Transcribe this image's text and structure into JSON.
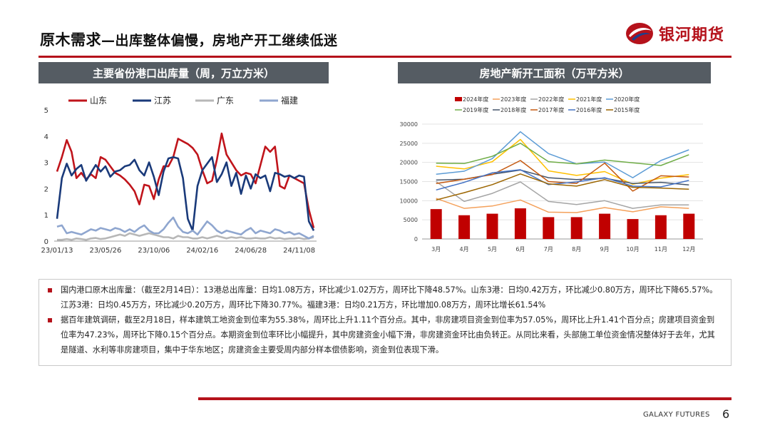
{
  "header": {
    "title_main": "原木需求",
    "title_sub": "—出库整体偏慢，房地产开工继续低迷",
    "logo_text": "银河期货",
    "colors": {
      "brand": "#b5121b",
      "panel": "#555c63"
    }
  },
  "left_panel": {
    "title": "主要省份港口出库量（周，万立方米）"
  },
  "right_panel": {
    "title": "房地产新开工面积（万平方米）"
  },
  "chart_data": [
    {
      "type": "line",
      "title": "主要省份港口出库量（周，万立方米）",
      "legend_position": "top",
      "ylim": [
        0,
        5
      ],
      "yticks": [
        "0",
        "1",
        "2",
        "3",
        "4",
        "5"
      ],
      "x_tick_labels": [
        "23/01/13",
        "23/05/26",
        "23/10/06",
        "24/02/16",
        "24/06/28",
        "24/11/08"
      ],
      "series": [
        {
          "name": "山东",
          "color": "#c0141b",
          "values": [
            2.65,
            3.2,
            3.85,
            3.4,
            2.4,
            2.6,
            2.35,
            2.55,
            2.4,
            3.2,
            3.1,
            2.85,
            2.6,
            2.5,
            2.35,
            2.15,
            1.9,
            1.4,
            2.15,
            2.1,
            1.6,
            2.35,
            2.85,
            2.85,
            3.2,
            3.9,
            3.8,
            3.7,
            3.55,
            3.3,
            2.7,
            2.2,
            2.3,
            3.1,
            4.1,
            3.3,
            3.0,
            2.7,
            2.5,
            2.6,
            2.55,
            2.2,
            2.9,
            3.6,
            3.4,
            3.6,
            2.1,
            2.0,
            2.5,
            2.4,
            2.3,
            2.2,
            1.2,
            0.5
          ]
        },
        {
          "name": "江苏",
          "color": "#1a3a7a",
          "values": [
            0.85,
            2.4,
            2.95,
            2.5,
            2.75,
            2.9,
            2.3,
            2.6,
            2.9,
            2.65,
            2.85,
            2.45,
            2.65,
            2.7,
            2.85,
            2.9,
            3.1,
            2.7,
            2.5,
            3.0,
            2.45,
            1.75,
            2.65,
            3.15,
            3.2,
            3.15,
            2.4,
            0.85,
            0.4,
            2.1,
            2.7,
            2.95,
            3.2,
            2.25,
            2.55,
            3.0,
            2.1,
            2.6,
            1.8,
            2.5,
            2.0,
            2.55,
            2.4,
            2.5,
            1.9,
            2.6,
            2.55,
            2.45,
            2.5,
            2.4,
            2.5,
            2.45,
            0.75,
            0.4
          ]
        },
        {
          "name": "广东",
          "color": "#b7b7b7",
          "values": [
            0.05,
            0.05,
            0.08,
            0.05,
            0.1,
            0.08,
            0.05,
            0.1,
            0.12,
            0.08,
            0.1,
            0.15,
            0.2,
            0.25,
            0.2,
            0.3,
            0.25,
            0.2,
            0.25,
            0.3,
            0.25,
            0.2,
            0.15,
            0.15,
            0.1,
            0.2,
            0.15,
            0.15,
            0.1,
            0.1,
            0.15,
            0.1,
            0.15,
            0.2,
            0.15,
            0.1,
            0.15,
            0.12,
            0.15,
            0.1,
            0.1,
            0.12,
            0.1,
            0.1,
            0.15,
            0.1,
            0.12,
            0.08,
            0.1,
            0.1,
            0.12,
            0.08,
            0.1,
            0.15
          ]
        },
        {
          "name": "福建",
          "color": "#8fa6cf",
          "values": [
            0.55,
            0.6,
            0.3,
            0.35,
            0.3,
            0.25,
            0.35,
            0.45,
            0.4,
            0.5,
            0.45,
            0.4,
            0.5,
            0.45,
            0.35,
            0.45,
            0.35,
            0.5,
            0.6,
            0.4,
            0.3,
            0.3,
            0.45,
            0.7,
            0.9,
            0.55,
            0.35,
            0.3,
            0.4,
            0.25,
            0.5,
            0.75,
            0.6,
            0.4,
            0.3,
            0.4,
            0.35,
            0.3,
            0.25,
            0.4,
            0.5,
            0.3,
            0.4,
            0.35,
            0.3,
            0.45,
            0.4,
            0.3,
            0.35,
            0.25,
            0.3,
            0.2,
            0.1,
            0.2
          ]
        }
      ]
    },
    {
      "type": "bar+line",
      "title": "房地产新开工面积（万平方米）",
      "legend_position": "top",
      "categories": [
        "3月",
        "4月",
        "5月",
        "6月",
        "7月",
        "8月",
        "9月",
        "10月",
        "11月",
        "12月"
      ],
      "ylim": [
        0,
        30000
      ],
      "yticks": [
        "0",
        "5000",
        "10000",
        "15000",
        "20000",
        "25000",
        "30000"
      ],
      "series": [
        {
          "name": "2024年度",
          "kind": "bar",
          "color": "#c00000",
          "values": [
            7800,
            6200,
            6600,
            8000,
            5700,
            5700,
            6600,
            5200,
            6200,
            6600
          ]
        },
        {
          "name": "2023年度",
          "kind": "line",
          "color": "#f4a15b",
          "values": [
            10600,
            8000,
            8600,
            10200,
            7000,
            6900,
            8200,
            7100,
            8400,
            8000
          ]
        },
        {
          "name": "2022年度",
          "kind": "line",
          "color": "#a5a5a5",
          "values": [
            15000,
            9800,
            11900,
            14900,
            9800,
            9000,
            10000,
            8000,
            8900,
            8900
          ]
        },
        {
          "name": "2021年度",
          "kind": "line",
          "color": "#ffc000",
          "values": [
            19000,
            18300,
            20200,
            26000,
            17800,
            16600,
            17600,
            14300,
            15900,
            16800
          ]
        },
        {
          "name": "2020年度",
          "kind": "line",
          "color": "#5b9bd5",
          "values": [
            16900,
            17700,
            21000,
            28000,
            22300,
            19600,
            20100,
            16000,
            20500,
            23300
          ]
        },
        {
          "name": "2019年度",
          "kind": "line",
          "color": "#70ad47",
          "values": [
            19800,
            19700,
            21600,
            25000,
            20200,
            19600,
            20600,
            19900,
            19200,
            22000
          ]
        },
        {
          "name": "2018年度",
          "kind": "line",
          "color": "#44546a",
          "values": [
            15400,
            15600,
            16900,
            18000,
            16000,
            15500,
            15900,
            14500,
            14800,
            14100
          ]
        },
        {
          "name": "2017年度",
          "kind": "line",
          "color": "#c55a11",
          "values": [
            14500,
            15600,
            16800,
            20500,
            15000,
            14500,
            19800,
            12500,
            16500,
            16200
          ]
        },
        {
          "name": "2016年度",
          "kind": "line",
          "color": "#4472c4",
          "values": [
            12800,
            14800,
            17300,
            18100,
            14200,
            14900,
            16000,
            13800,
            13600,
            15300
          ]
        },
        {
          "name": "2015年度",
          "kind": "line",
          "color": "#9c6500",
          "values": [
            10200,
            12100,
            14200,
            17000,
            14400,
            13800,
            15500,
            13500,
            13300,
            13000
          ]
        }
      ]
    }
  ],
  "notes": [
    "国内港口原木出库量：（截至2月14日）：13港总出库量：日均1.08万方，环比减少1.02万方，周环比下降48.57%。山东3港：日均0.42万方，环比减少0.80万方，周环比下降65.57%。江苏3港：日均0.45万方，环比减少0.20万方，周环比下降30.77%。福建3港：日均0.21万方，环比增加0.08万方，周环比增长61.54%",
    "据百年建筑调研，截至2月18日，样本建筑工地资金到位率为55.38%，周环比上升1.11个百分点。其中，非房建项目资金到位率为57.05%，周环比上升1.41个百分点；房建项目资金到位率为47.23%，周环比下降0.15个百分点。本期资金到位率环比小幅提升，其中房建资金小幅下滑，非房建资金环比由负转正。从同比来看，头部施工单位资金情况整体好于去年，尤其是隧道、水利等非房建项目，集中于华东地区；房建资金主要受周内部分样本偿债影响，资金到位表现下滑。"
  ],
  "footer": {
    "company": "GALAXY FUTURES",
    "page": "6"
  }
}
